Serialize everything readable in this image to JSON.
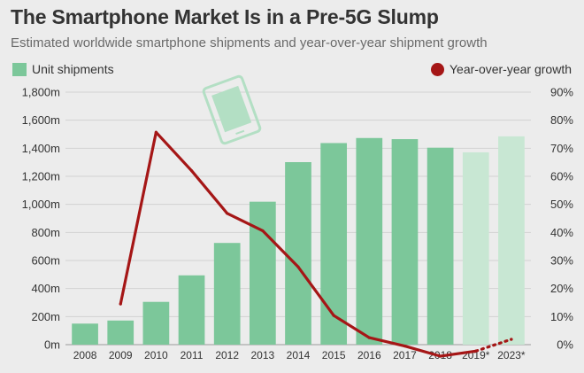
{
  "header": {
    "title": "The Smartphone Market Is in a Pre-5G Slump",
    "subtitle": "Estimated worldwide smartphone shipments and year-over-year shipment growth"
  },
  "legend": {
    "bars_label": "Unit shipments",
    "line_label": "Year-over-year growth"
  },
  "colors": {
    "bar": "#7cc79a",
    "bar_forecast": "#c8e7d3",
    "line": "#a51616",
    "icon": "#b3dfc4"
  },
  "icon": "smartphone-icon",
  "chart_data": {
    "type": "bar",
    "categories": [
      "2008",
      "2009",
      "2010",
      "2011",
      "2012",
      "2013",
      "2014",
      "2015",
      "2016",
      "2017",
      "2018",
      "2019*",
      "2023*"
    ],
    "forecast": [
      false,
      false,
      false,
      false,
      false,
      false,
      false,
      false,
      false,
      false,
      false,
      true,
      true
    ],
    "series": [
      {
        "name": "Unit shipments",
        "type": "bar",
        "axis": "left",
        "unit": "m",
        "values": [
          150,
          172,
          305,
          494,
          725,
          1019,
          1301,
          1437,
          1473,
          1465,
          1404,
          1371,
          1485
        ]
      },
      {
        "name": "Year-over-year growth",
        "type": "line",
        "axis": "right",
        "unit": "%",
        "values": [
          null,
          14.5,
          75.7,
          62.0,
          46.8,
          40.6,
          27.7,
          10.4,
          2.5,
          -0.5,
          -4.1,
          -2.3,
          1.9
        ],
        "dotted_from_index": 11
      }
    ],
    "y_left": {
      "ylim": [
        0,
        1800
      ],
      "ticks": [
        "0m",
        "200m",
        "400m",
        "600m",
        "800m",
        "1,000m",
        "1,200m",
        "1,400m",
        "1,600m",
        "1,800m"
      ]
    },
    "y_right": {
      "ylim": [
        0,
        90
      ],
      "ticks": [
        "0%",
        "10%",
        "20%",
        "30%",
        "40%",
        "50%",
        "60%",
        "70%",
        "80%",
        "90%"
      ]
    },
    "grid": true,
    "legend_position": "top"
  }
}
